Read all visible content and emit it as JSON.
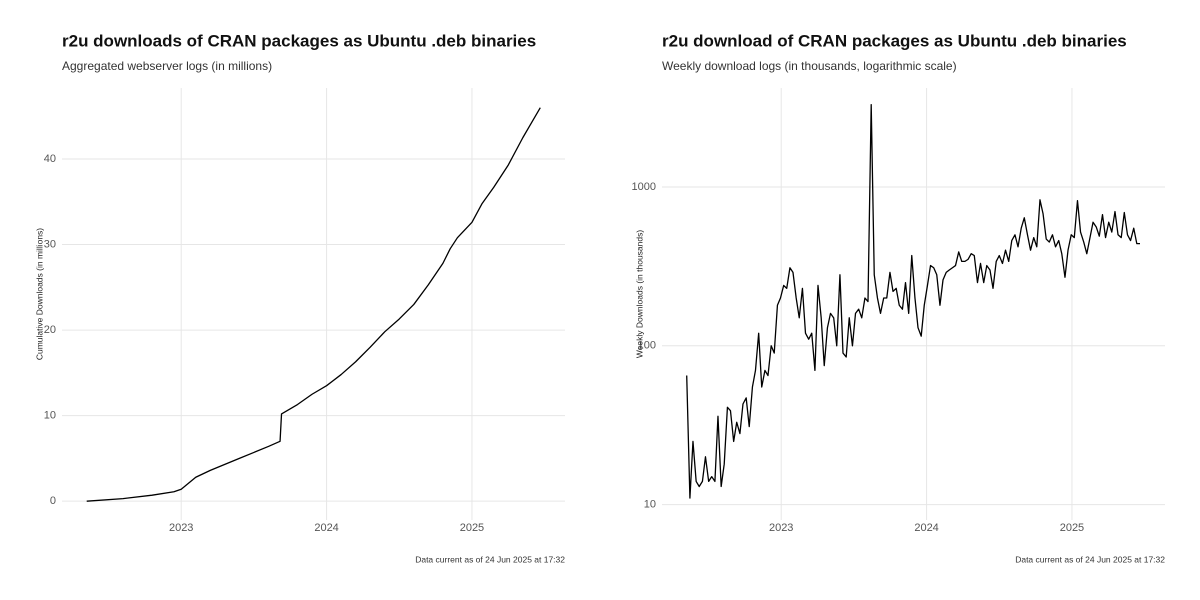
{
  "chart_data": [
    {
      "type": "line",
      "title": "r2u downloads of CRAN packages as Ubuntu .deb binaries",
      "subtitle": "Aggregated webserver logs (in millions)",
      "y_label": "Cumulative Downloads (in millions)",
      "caption": "Data current as of  24 Jun 2025 at 17:32",
      "color": "#000000",
      "x": [
        2022.35,
        2022.6,
        2022.8,
        2022.95,
        2023.0,
        2023.1,
        2023.2,
        2023.3,
        2023.4,
        2023.5,
        2023.6,
        2023.68,
        2023.69,
        2023.8,
        2023.9,
        2024.0,
        2024.1,
        2024.2,
        2024.3,
        2024.4,
        2024.5,
        2024.6,
        2024.7,
        2024.8,
        2024.85,
        2024.9,
        2025.0,
        2025.07,
        2025.15,
        2025.25,
        2025.35,
        2025.47
      ],
      "values": [
        0,
        0.3,
        0.7,
        1.1,
        1.4,
        2.8,
        3.6,
        4.3,
        5.0,
        5.7,
        6.4,
        7.0,
        10.2,
        11.3,
        12.5,
        13.5,
        14.8,
        16.3,
        18.0,
        19.8,
        21.3,
        23.0,
        25.3,
        27.8,
        29.5,
        30.8,
        32.6,
        34.8,
        36.7,
        39.3,
        42.5,
        46.0
      ],
      "xlim": [
        2022.18,
        2025.64
      ],
      "xticks": [
        2023,
        2024,
        2025
      ],
      "ylim": [
        -2.2,
        48.3
      ],
      "yticks": [
        0,
        10,
        20,
        30,
        40
      ],
      "grid": true,
      "log_y": false
    },
    {
      "type": "line",
      "title": "r2u download of CRAN packages as Ubuntu .deb binaries",
      "subtitle": "Weekly download logs (in thousands, logarithmic scale)",
      "y_label": "Weekly Downloads (in thousands)",
      "caption": "Data current as of  24 Jun 2025 at 17:32",
      "color": "#000000",
      "x": [
        2022.35,
        2022.372,
        2022.393,
        2022.415,
        2022.436,
        2022.458,
        2022.479,
        2022.501,
        2022.522,
        2022.544,
        2022.565,
        2022.587,
        2022.608,
        2022.63,
        2022.651,
        2022.673,
        2022.694,
        2022.716,
        2022.737,
        2022.759,
        2022.78,
        2022.802,
        2022.823,
        2022.845,
        2022.866,
        2022.888,
        2022.909,
        2022.931,
        2022.952,
        2022.974,
        2022.995,
        2023.017,
        2023.038,
        2023.06,
        2023.081,
        2023.103,
        2023.124,
        2023.146,
        2023.167,
        2023.189,
        2023.21,
        2023.232,
        2023.253,
        2023.275,
        2023.296,
        2023.318,
        2023.339,
        2023.361,
        2023.382,
        2023.404,
        2023.425,
        2023.447,
        2023.468,
        2023.49,
        2023.511,
        2023.533,
        2023.554,
        2023.576,
        2023.597,
        2023.619,
        2023.64,
        2023.662,
        2023.683,
        2023.705,
        2023.726,
        2023.748,
        2023.769,
        2023.791,
        2023.812,
        2023.834,
        2023.855,
        2023.877,
        2023.898,
        2023.92,
        2023.941,
        2023.963,
        2023.984,
        2024.006,
        2024.027,
        2024.049,
        2024.07,
        2024.092,
        2024.113,
        2024.135,
        2024.156,
        2024.178,
        2024.199,
        2024.221,
        2024.242,
        2024.264,
        2024.285,
        2024.307,
        2024.328,
        2024.35,
        2024.371,
        2024.393,
        2024.414,
        2024.436,
        2024.457,
        2024.479,
        2024.5,
        2024.522,
        2024.543,
        2024.565,
        2024.586,
        2024.608,
        2024.629,
        2024.651,
        2024.672,
        2024.694,
        2024.715,
        2024.737,
        2024.758,
        2024.78,
        2024.801,
        2024.823,
        2024.844,
        2024.866,
        2024.887,
        2024.909,
        2024.93,
        2024.952,
        2024.973,
        2024.995,
        2025.016,
        2025.038,
        2025.059,
        2025.081,
        2025.102,
        2025.124,
        2025.145,
        2025.167,
        2025.188,
        2025.21,
        2025.231,
        2025.253,
        2025.274,
        2025.296,
        2025.317,
        2025.339,
        2025.36,
        2025.382,
        2025.403,
        2025.425,
        2025.446,
        2025.468
      ],
      "values": [
        65,
        11,
        25,
        14,
        13,
        14,
        20,
        14,
        15,
        14,
        36,
        13,
        18,
        41,
        39,
        25,
        33,
        28,
        43,
        47,
        31,
        55,
        70,
        120,
        55,
        70,
        65,
        100,
        90,
        180,
        200,
        240,
        230,
        310,
        290,
        200,
        150,
        230,
        120,
        110,
        120,
        70,
        240,
        150,
        75,
        130,
        160,
        150,
        100,
        280,
        90,
        85,
        150,
        100,
        160,
        170,
        150,
        200,
        190,
        3300,
        280,
        200,
        160,
        200,
        200,
        290,
        220,
        230,
        180,
        170,
        250,
        160,
        370,
        200,
        130,
        115,
        180,
        240,
        320,
        310,
        280,
        180,
        260,
        290,
        300,
        310,
        320,
        390,
        340,
        340,
        350,
        380,
        370,
        250,
        330,
        250,
        320,
        300,
        230,
        340,
        370,
        330,
        400,
        340,
        460,
        500,
        420,
        550,
        640,
        500,
        400,
        480,
        420,
        830,
        680,
        470,
        450,
        500,
        420,
        460,
        380,
        270,
        400,
        500,
        480,
        820,
        520,
        450,
        380,
        480,
        600,
        560,
        490,
        670,
        480,
        600,
        520,
        700,
        500,
        480,
        690,
        500,
        460,
        550,
        440,
        440
      ],
      "xlim": [
        2022.18,
        2025.64
      ],
      "xticks": [
        2023,
        2024,
        2025
      ],
      "ylim": [
        8,
        4200
      ],
      "yticks": [
        10,
        100,
        1000
      ],
      "grid": true,
      "log_y": true
    }
  ]
}
